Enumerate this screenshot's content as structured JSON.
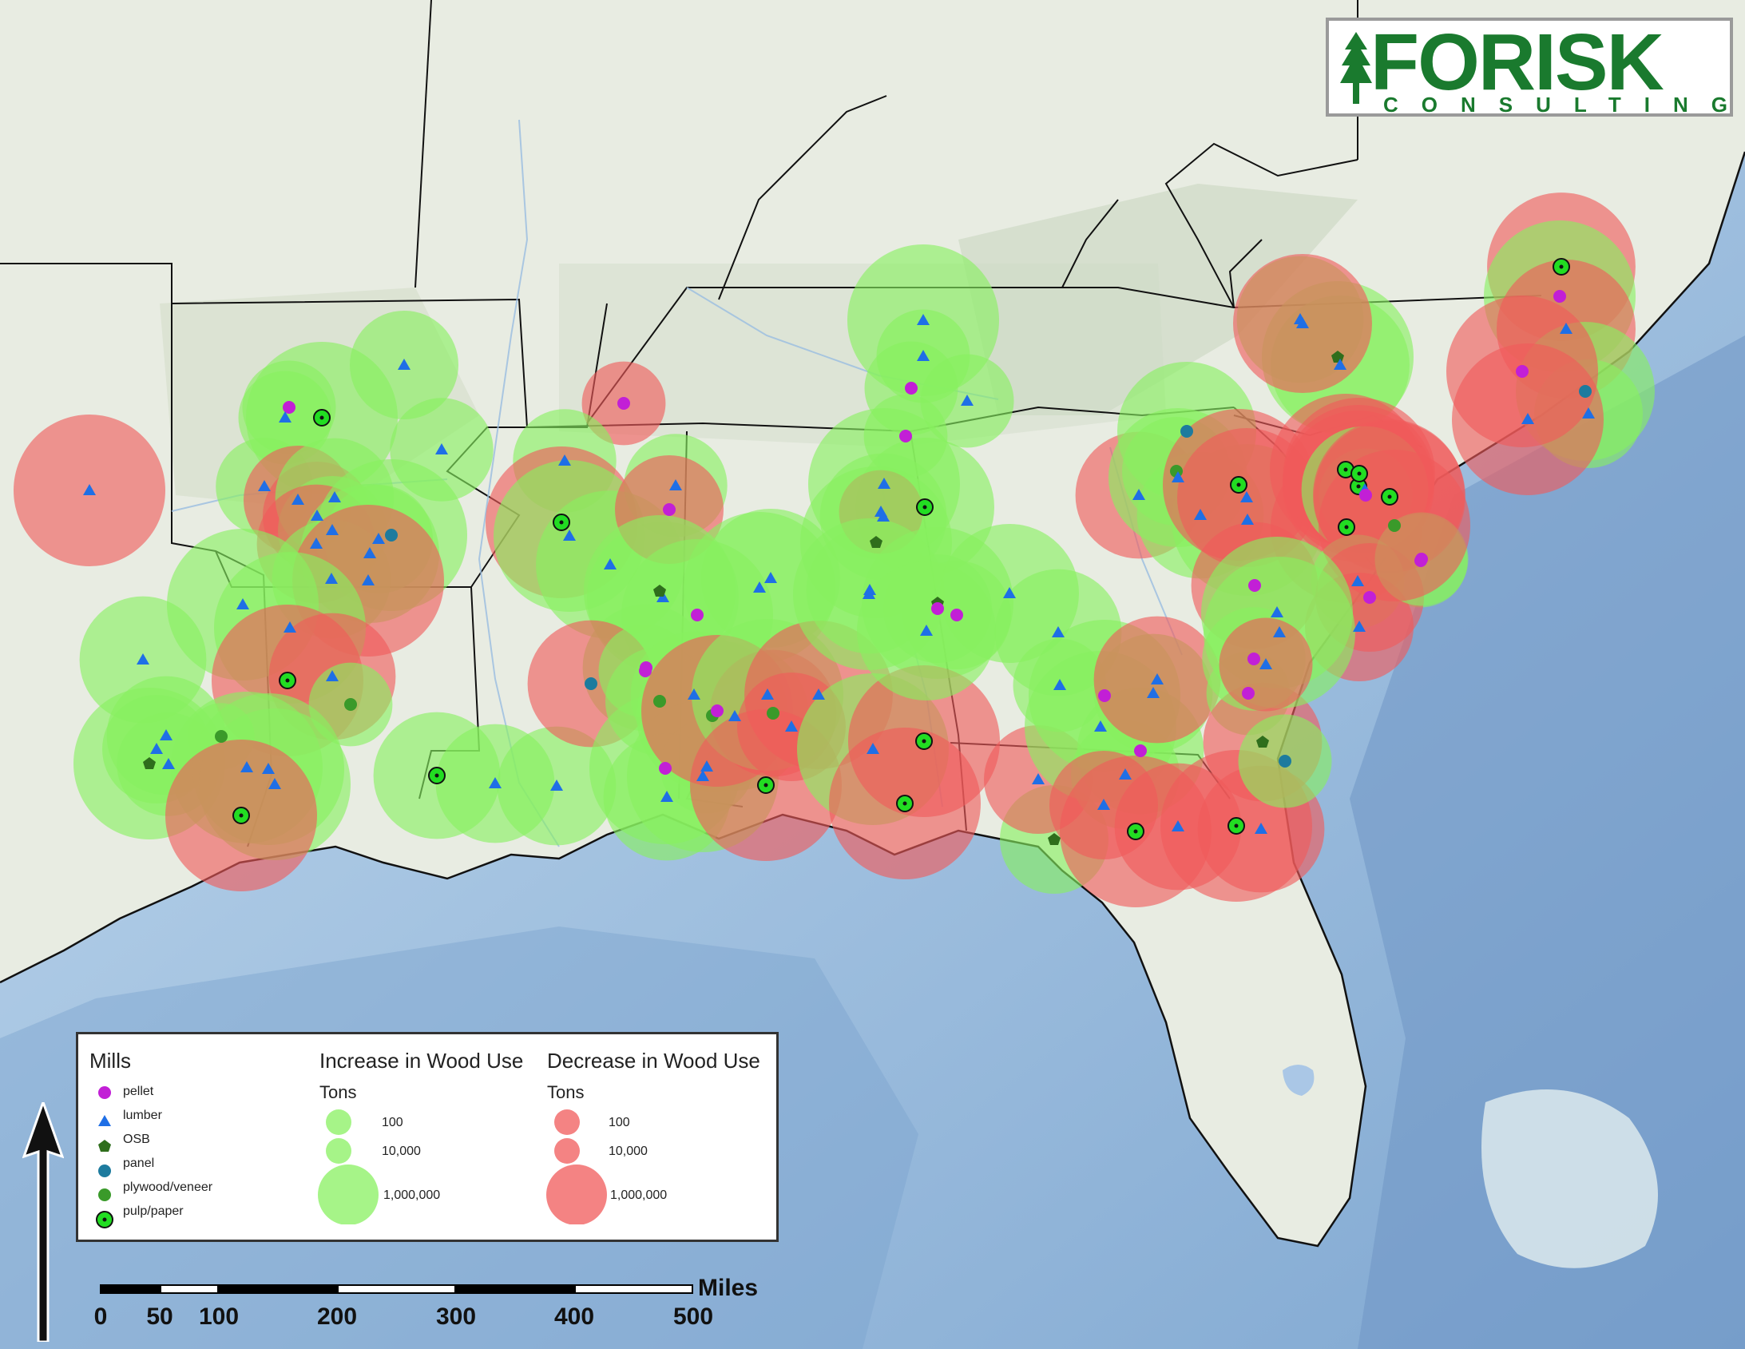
{
  "brand": {
    "name": "FORISK",
    "tagline": "CONSULTING",
    "color": "#1a7a2e"
  },
  "legend": {
    "mills_title": "Mills",
    "mills": [
      {
        "label": "pellet",
        "symbol": "circle",
        "color": "#c21fd6"
      },
      {
        "label": "lumber",
        "symbol": "triangle",
        "color": "#1f6fe6"
      },
      {
        "label": "OSB",
        "symbol": "pentagon",
        "color": "#2f6e1c"
      },
      {
        "label": "panel",
        "symbol": "circle",
        "color": "#1d7b9e"
      },
      {
        "label": "plywood/veneer",
        "symbol": "circle",
        "color": "#3a9a2a"
      },
      {
        "label": "pulp/paper",
        "symbol": "bullseye",
        "color": "#22dd22"
      }
    ],
    "increase": {
      "title": "Increase in Wood Use",
      "units": "Tons",
      "color": "#88f060",
      "sizes": [
        "100",
        "10,000",
        "1,000,000"
      ]
    },
    "decrease": {
      "title": "Decrease in Wood Use",
      "units": "Tons",
      "color": "#f05a5a",
      "sizes": [
        "100",
        "10,000",
        "1,000,000"
      ]
    }
  },
  "scale_bar": {
    "unit": "Miles",
    "ticks": [
      "0",
      "50",
      "100",
      "200",
      "300",
      "400",
      "500"
    ]
  },
  "north_arrow": {
    "icon": "north-arrow-icon"
  },
  "mills_on_map": [
    {
      "type": "lumber",
      "change": "decrease",
      "tons": 200000
    },
    {
      "type": "pellet",
      "change": "increase",
      "tons": 5000
    },
    {
      "type": "lumber",
      "change": "increase",
      "tons": 5000
    },
    {
      "type": "pulp/paper",
      "change": "increase",
      "tons": 200000
    },
    {
      "type": "lumber",
      "change": "increase",
      "tons": 10000
    },
    {
      "type": "lumber",
      "change": "increase",
      "tons": 8000
    },
    {
      "type": "lumber",
      "change": "increase",
      "tons": 6000
    },
    {
      "type": "lumber",
      "change": "decrease",
      "tons": 10000
    },
    {
      "type": "lumber",
      "change": "decrease",
      "tons": 10000
    },
    {
      "type": "lumber",
      "change": "increase",
      "tons": 15000
    },
    {
      "type": "lumber",
      "change": "increase",
      "tons": 10000
    },
    {
      "type": "lumber",
      "change": "decrease",
      "tons": 15000
    },
    {
      "type": "panel",
      "change": "increase",
      "tons": 50000
    },
    {
      "type": "lumber",
      "change": "increase",
      "tons": 10000
    },
    {
      "type": "lumber",
      "change": "increase",
      "tons": 30000
    },
    {
      "type": "lumber",
      "change": "increase",
      "tons": 15000
    },
    {
      "type": "lumber",
      "change": "decrease",
      "tons": 50000
    },
    {
      "type": "lumber",
      "change": "increase",
      "tons": 200000
    },
    {
      "type": "lumber",
      "change": "increase",
      "tons": 300000
    },
    {
      "type": "pulp/paper",
      "change": "decrease",
      "tons": 400000
    },
    {
      "type": "lumber",
      "change": "decrease",
      "tons": 20000
    },
    {
      "type": "plywood/veneer",
      "change": "increase",
      "tons": 3000
    },
    {
      "type": "lumber",
      "change": "increase",
      "tons": 20000
    },
    {
      "type": "lumber",
      "change": "increase",
      "tons": 15000
    },
    {
      "type": "lumber",
      "change": "increase",
      "tons": 10000
    },
    {
      "type": "OSB",
      "change": "increase",
      "tons": 300000
    },
    {
      "type": "lumber",
      "change": "increase",
      "tons": 8000
    },
    {
      "type": "plywood/veneer",
      "change": "increase",
      "tons": 1000
    },
    {
      "type": "lumber",
      "change": "increase",
      "tons": 100000
    },
    {
      "type": "lumber",
      "change": "increase",
      "tons": 150000
    },
    {
      "type": "lumber",
      "change": "increase",
      "tons": 150000
    },
    {
      "type": "pulp/paper",
      "change": "decrease",
      "tons": 1000000
    },
    {
      "type": "pulp/paper",
      "change": "increase",
      "tons": 20000
    },
    {
      "type": "lumber",
      "change": "increase",
      "tons": 15000
    },
    {
      "type": "lumber",
      "change": "increase",
      "tons": 15000
    },
    {
      "type": "pellet",
      "change": "decrease",
      "tons": 3000
    },
    {
      "type": "lumber",
      "change": "increase",
      "tons": 8000
    },
    {
      "type": "pulp/paper",
      "change": "decrease",
      "tons": 50000
    },
    {
      "type": "lumber",
      "change": "increase",
      "tons": 150000
    },
    {
      "type": "lumber",
      "change": "increase",
      "tons": 40000
    },
    {
      "type": "lumber",
      "change": "increase",
      "tons": 150000
    },
    {
      "type": "lumber",
      "change": "increase",
      "tons": 8000
    },
    {
      "type": "pellet",
      "change": "decrease",
      "tons": 10000
    },
    {
      "type": "OSB",
      "change": "increase",
      "tons": 1000000
    },
    {
      "type": "pellet",
      "change": "increase",
      "tons": 300000
    },
    {
      "type": "pellet",
      "change": "increase",
      "tons": 20000
    },
    {
      "type": "lumber",
      "change": "increase",
      "tons": 40000
    },
    {
      "type": "lumber",
      "change": "increase",
      "tons": 100000
    },
    {
      "type": "lumber",
      "change": "increase",
      "tons": 30000
    },
    {
      "type": "pellet",
      "change": "increase",
      "tons": 3000
    },
    {
      "type": "lumber",
      "change": "increase",
      "tons": 5000
    },
    {
      "type": "pellet",
      "change": "increase",
      "tons": 5000
    },
    {
      "type": "lumber",
      "change": "increase",
      "tons": 5000
    },
    {
      "type": "lumber",
      "change": "increase",
      "tons": 100000
    },
    {
      "type": "lumber",
      "change": "increase",
      "tons": 50000
    },
    {
      "type": "pulp/paper",
      "change": "increase",
      "tons": 30000
    },
    {
      "type": "lumber",
      "change": "increase",
      "tons": 20000
    },
    {
      "type": "panel",
      "change": "decrease",
      "tons": 20000
    },
    {
      "type": "pellet",
      "change": "increase",
      "tons": 5000
    },
    {
      "type": "plywood/veneer",
      "change": "increase",
      "tons": 10000
    },
    {
      "type": "lumber",
      "change": "increase",
      "tons": 20000
    },
    {
      "type": "plywood/veneer",
      "change": "increase",
      "tons": 100000
    },
    {
      "type": "pellet",
      "change": "increase",
      "tons": 500000
    },
    {
      "type": "lumber",
      "change": "increase",
      "tons": 150000
    },
    {
      "type": "lumber",
      "change": "increase",
      "tons": 5000
    },
    {
      "type": "lumber",
      "change": "increase",
      "tons": 20000
    },
    {
      "type": "pellet",
      "change": "decrease",
      "tons": 50000
    },
    {
      "type": "plywood/veneer",
      "change": "decrease",
      "tons": 20000
    },
    {
      "type": "lumber",
      "change": "increase",
      "tons": 50000
    },
    {
      "type": "lumber",
      "change": "decrease",
      "tons": 10000
    },
    {
      "type": "lumber",
      "change": "decrease",
      "tons": 40000
    },
    {
      "type": "pulp/paper",
      "change": "decrease",
      "tons": 150000
    },
    {
      "type": "lumber",
      "change": "increase",
      "tons": 100000
    },
    {
      "type": "lumber",
      "change": "increase",
      "tons": 20000
    },
    {
      "type": "lumber",
      "change": "decrease",
      "tons": 3000
    },
    {
      "type": "OSB",
      "change": "increase",
      "tons": 100000
    },
    {
      "type": "OSB",
      "change": "increase",
      "tons": 500000
    },
    {
      "type": "pellet",
      "change": "increase",
      "tons": 10000
    },
    {
      "type": "pellet",
      "change": "increase",
      "tons": 10000
    },
    {
      "type": "pulp/paper",
      "change": "decrease",
      "tons": 4000000
    },
    {
      "type": "pulp/paper",
      "change": "decrease",
      "tons": 800000
    },
    {
      "type": "lumber",
      "change": "increase",
      "tons": 80000
    },
    {
      "type": "lumber",
      "change": "increase",
      "tons": 30000
    },
    {
      "type": "OSB",
      "change": "increase",
      "tons": 10000
    },
    {
      "type": "lumber",
      "change": "decrease",
      "tons": 10000
    },
    {
      "type": "lumber",
      "change": "increase",
      "tons": 30000
    },
    {
      "type": "lumber",
      "change": "increase",
      "tons": 20000
    },
    {
      "type": "lumber",
      "change": "increase",
      "tons": 5000
    },
    {
      "type": "pellet",
      "change": "increase",
      "tons": 2000000
    },
    {
      "type": "lumber",
      "change": "increase",
      "tons": 2000000
    },
    {
      "type": "pellet",
      "change": "increase",
      "tons": 20000
    },
    {
      "type": "lumber",
      "change": "increase",
      "tons": 10000
    },
    {
      "type": "pulp/paper",
      "change": "decrease",
      "tons": 2000000
    },
    {
      "type": "lumber",
      "change": "increase",
      "tons": 15000
    },
    {
      "type": "lumber",
      "change": "decrease",
      "tons": 20000
    },
    {
      "type": "lumber",
      "change": "decrease",
      "tons": 20000
    },
    {
      "type": "plywood/veneer",
      "change": "increase",
      "tons": 10000
    },
    {
      "type": "lumber",
      "change": "increase",
      "tons": 30000
    },
    {
      "type": "panel",
      "change": "increase",
      "tons": 30000
    },
    {
      "type": "lumber",
      "change": "increase",
      "tons": 20000
    },
    {
      "type": "lumber",
      "change": "increase",
      "tons": 50000
    },
    {
      "type": "lumber",
      "change": "decrease",
      "tons": 30000
    },
    {
      "type": "pulp/paper",
      "change": "decrease",
      "tons": 80000
    },
    {
      "type": "lumber",
      "change": "decrease",
      "tons": 20000
    },
    {
      "type": "pulp/paper",
      "change": "decrease",
      "tons": 1500000
    },
    {
      "type": "lumber",
      "change": "decrease",
      "tons": 20000
    },
    {
      "type": "lumber",
      "change": "decrease",
      "tons": 10000
    },
    {
      "type": "pellet",
      "change": "increase",
      "tons": 3000
    },
    {
      "type": "OSB",
      "change": "decrease",
      "tons": 15000
    },
    {
      "type": "panel",
      "change": "increase",
      "tons": 5000
    },
    {
      "type": "lumber",
      "change": "increase",
      "tons": 20000
    },
    {
      "type": "OSB",
      "change": "increase",
      "tons": 150000
    },
    {
      "type": "lumber",
      "change": "increase",
      "tons": 30000
    },
    {
      "type": "lumber",
      "change": "decrease",
      "tons": 30000
    },
    {
      "type": "pulp/paper",
      "change": "decrease",
      "tons": 40000
    },
    {
      "type": "pellet",
      "change": "increase",
      "tons": 150000
    },
    {
      "type": "lumber",
      "change": "decrease",
      "tons": 30000
    },
    {
      "type": "panel",
      "change": "increase",
      "tons": 30000
    },
    {
      "type": "lumber",
      "change": "increase",
      "tons": 10000
    },
    {
      "type": "lumber",
      "change": "decrease",
      "tons": 300000
    },
    {
      "type": "pellet",
      "change": "decrease",
      "tons": 300000
    },
    {
      "type": "pulp/paper",
      "change": "decrease",
      "tons": 600000
    },
    {
      "type": "lumber",
      "change": "decrease",
      "tons": 800000
    },
    {
      "type": "pulp/paper",
      "change": "decrease",
      "tons": 800000
    },
    {
      "type": "pulp/paper",
      "change": "decrease",
      "tons": 200000
    },
    {
      "type": "pulp/paper",
      "change": "decrease",
      "tons": 1000000
    },
    {
      "type": "lumber",
      "change": "increase",
      "tons": 20000
    },
    {
      "type": "pellet",
      "change": "increase",
      "tons": 5000
    },
    {
      "type": "lumber",
      "change": "decrease",
      "tons": 50000
    },
    {
      "type": "pellet",
      "change": "increase",
      "tons": 5000
    },
    {
      "type": "pulp/paper",
      "change": "decrease",
      "tons": 150000
    },
    {
      "type": "lumber",
      "change": "increase",
      "tons": 5000
    },
    {
      "type": "lumber",
      "change": "decrease",
      "tons": 10000
    },
    {
      "type": "pellet",
      "change": "decrease",
      "tons": 10000
    },
    {
      "type": "pellet",
      "change": "increase",
      "tons": 5000
    },
    {
      "type": "plywood/veneer",
      "change": "decrease",
      "tons": 50000
    },
    {
      "type": "pellet",
      "change": "decrease",
      "tons": 20000
    },
    {
      "type": "lumber",
      "change": "increase",
      "tons": 500000
    },
    {
      "type": "lumber",
      "change": "increase",
      "tons": 100000
    },
    {
      "type": "pellet",
      "change": "increase",
      "tons": 8000
    },
    {
      "type": "lumber",
      "change": "decrease",
      "tons": 5000
    }
  ]
}
